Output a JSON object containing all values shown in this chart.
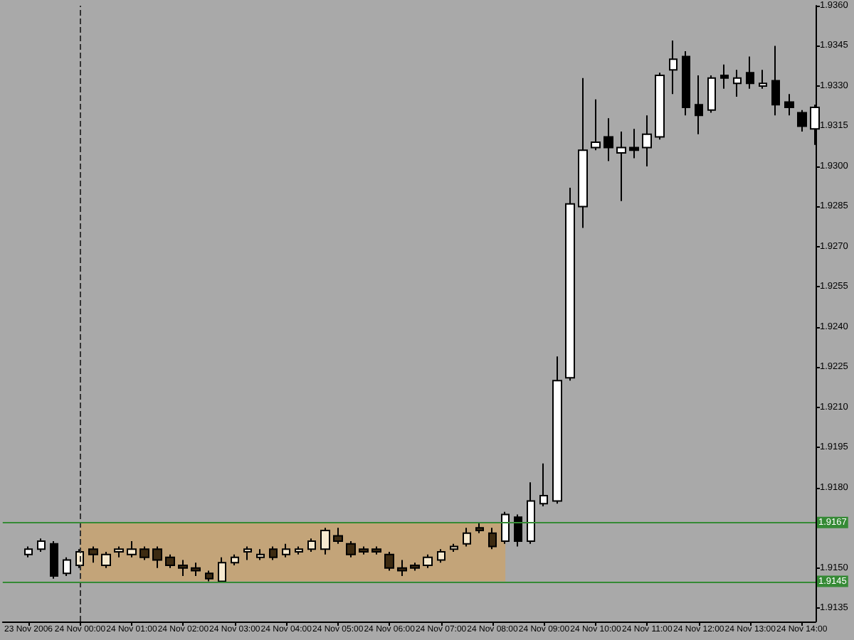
{
  "chart_data": {
    "type": "candlestick",
    "x": [
      "2006-11-23T23:00",
      "2006-11-23T23:15",
      "2006-11-23T23:30",
      "2006-11-23T23:45",
      "2006-11-24T00:00",
      "2006-11-24T00:15",
      "2006-11-24T00:30",
      "2006-11-24T00:45",
      "2006-11-24T01:00",
      "2006-11-24T01:15",
      "2006-11-24T01:30",
      "2006-11-24T01:45",
      "2006-11-24T02:00",
      "2006-11-24T02:15",
      "2006-11-24T02:30",
      "2006-11-24T02:45",
      "2006-11-24T03:00",
      "2006-11-24T03:15",
      "2006-11-24T03:30",
      "2006-11-24T03:45",
      "2006-11-24T04:00",
      "2006-11-24T04:15",
      "2006-11-24T04:30",
      "2006-11-24T04:45",
      "2006-11-24T05:00",
      "2006-11-24T05:15",
      "2006-11-24T05:30",
      "2006-11-24T05:45",
      "2006-11-24T06:00",
      "2006-11-24T06:15",
      "2006-11-24T06:30",
      "2006-11-24T06:45",
      "2006-11-24T07:00",
      "2006-11-24T07:15",
      "2006-11-24T07:30",
      "2006-11-24T07:45",
      "2006-11-24T08:00",
      "2006-11-24T08:15",
      "2006-11-24T08:30",
      "2006-11-24T08:45",
      "2006-11-24T09:00",
      "2006-11-24T09:15",
      "2006-11-24T09:30",
      "2006-11-24T09:45",
      "2006-11-24T10:00",
      "2006-11-24T10:15",
      "2006-11-24T10:30",
      "2006-11-24T10:45",
      "2006-11-24T11:00",
      "2006-11-24T11:15",
      "2006-11-24T11:30",
      "2006-11-24T11:45",
      "2006-11-24T12:00",
      "2006-11-24T12:15",
      "2006-11-24T12:30",
      "2006-11-24T12:45",
      "2006-11-24T13:00",
      "2006-11-24T13:15",
      "2006-11-24T13:30",
      "2006-11-24T13:45",
      "2006-11-24T14:00",
      "2006-11-24T14:15"
    ],
    "ohlc": [
      [
        1.9155,
        1.9158,
        1.9154,
        1.9157
      ],
      [
        1.9157,
        1.9161,
        1.9156,
        1.916
      ],
      [
        1.9159,
        1.916,
        1.9146,
        1.9147
      ],
      [
        1.9148,
        1.9154,
        1.9147,
        1.9153
      ],
      [
        1.9151,
        1.9157,
        1.915,
        1.9156
      ],
      [
        1.9157,
        1.9158,
        1.9152,
        1.9155
      ],
      [
        1.9151,
        1.9156,
        1.915,
        1.9155
      ],
      [
        1.9156,
        1.9158,
        1.9154,
        1.9157
      ],
      [
        1.9155,
        1.916,
        1.9154,
        1.9157
      ],
      [
        1.9157,
        1.9158,
        1.9153,
        1.9154
      ],
      [
        1.9157,
        1.9158,
        1.915,
        1.9153
      ],
      [
        1.9154,
        1.9155,
        1.915,
        1.9151
      ],
      [
        1.9151,
        1.9153,
        1.9147,
        1.915
      ],
      [
        1.915,
        1.9152,
        1.9147,
        1.9149
      ],
      [
        1.9148,
        1.9149,
        1.9145,
        1.9146
      ],
      [
        1.9145,
        1.9154,
        1.9145,
        1.9152
      ],
      [
        1.9152,
        1.9155,
        1.9151,
        1.9154
      ],
      [
        1.9156,
        1.9158,
        1.9153,
        1.9157
      ],
      [
        1.9154,
        1.9157,
        1.9153,
        1.9155
      ],
      [
        1.9157,
        1.9158,
        1.9153,
        1.9154
      ],
      [
        1.9155,
        1.9159,
        1.9154,
        1.9157
      ],
      [
        1.9156,
        1.9158,
        1.9155,
        1.9157
      ],
      [
        1.9157,
        1.9161,
        1.9156,
        1.916
      ],
      [
        1.9157,
        1.9165,
        1.9155,
        1.9164
      ],
      [
        1.9162,
        1.9165,
        1.9159,
        1.916
      ],
      [
        1.9159,
        1.916,
        1.9154,
        1.9155
      ],
      [
        1.9157,
        1.9158,
        1.9155,
        1.9156
      ],
      [
        1.9157,
        1.9158,
        1.9155,
        1.9156
      ],
      [
        1.9155,
        1.9156,
        1.9149,
        1.915
      ],
      [
        1.915,
        1.9153,
        1.9147,
        1.9149
      ],
      [
        1.9151,
        1.9152,
        1.9149,
        1.915
      ],
      [
        1.9151,
        1.9155,
        1.915,
        1.9154
      ],
      [
        1.9153,
        1.9157,
        1.9152,
        1.9156
      ],
      [
        1.9157,
        1.9159,
        1.9156,
        1.9158
      ],
      [
        1.9159,
        1.9165,
        1.9158,
        1.9163
      ],
      [
        1.9165,
        1.9167,
        1.9163,
        1.9164
      ],
      [
        1.9163,
        1.9165,
        1.9157,
        1.9158
      ],
      [
        1.916,
        1.9171,
        1.9159,
        1.917
      ],
      [
        1.9169,
        1.917,
        1.9158,
        1.916
      ],
      [
        1.916,
        1.9182,
        1.9159,
        1.9175
      ],
      [
        1.9174,
        1.9189,
        1.9173,
        1.9177
      ],
      [
        1.9175,
        1.9229,
        1.9174,
        1.922
      ],
      [
        1.9221,
        1.9292,
        1.922,
        1.9286
      ],
      [
        1.9285,
        1.9333,
        1.9277,
        1.9306
      ],
      [
        1.9307,
        1.9325,
        1.9306,
        1.9309
      ],
      [
        1.9311,
        1.9318,
        1.9302,
        1.9307
      ],
      [
        1.9305,
        1.9313,
        1.9287,
        1.9307
      ],
      [
        1.9307,
        1.9314,
        1.9303,
        1.9306
      ],
      [
        1.9307,
        1.9319,
        1.93,
        1.9312
      ],
      [
        1.9311,
        1.9335,
        1.931,
        1.9334
      ],
      [
        1.9336,
        1.9347,
        1.9327,
        1.934
      ],
      [
        1.9341,
        1.9343,
        1.9319,
        1.9322
      ],
      [
        1.9323,
        1.9334,
        1.9312,
        1.9319
      ],
      [
        1.9321,
        1.9334,
        1.932,
        1.9333
      ],
      [
        1.9334,
        1.9338,
        1.9329,
        1.9333
      ],
      [
        1.9331,
        1.9336,
        1.9326,
        1.9333
      ],
      [
        1.9335,
        1.9341,
        1.9329,
        1.9331
      ],
      [
        1.933,
        1.9336,
        1.9329,
        1.9331
      ],
      [
        1.9332,
        1.9345,
        1.9319,
        1.9323
      ],
      [
        1.9324,
        1.9327,
        1.9319,
        1.9322
      ],
      [
        1.932,
        1.9321,
        1.9313,
        1.9315
      ],
      [
        1.9314,
        1.9323,
        1.9308,
        1.9322
      ]
    ],
    "color": "#000000",
    "colors": [
      "#ffffff",
      "#ffffff",
      "#000000",
      "#ffffff",
      "#f7ead0",
      "#3d2b12",
      "#f7ead0",
      "#f7ead0",
      "#f7ead0",
      "#3d2b12",
      "#3d2b12",
      "#3d2b12",
      "#3d2b12",
      "#3d2b12",
      "#3d2b12",
      "#f7ead0",
      "#f7ead0",
      "#f7ead0",
      "#f7ead0",
      "#3d2b12",
      "#f7ead0",
      "#f7ead0",
      "#f7ead0",
      "#f7ead0",
      "#3d2b12",
      "#3d2b12",
      "#3d2b12",
      "#3d2b12",
      "#3d2b12",
      "#3d2b12",
      "#3d2b12",
      "#f7ead0",
      "#f7ead0",
      "#f7ead0",
      "#f7ead0",
      "#3d2b12",
      "#3d2b12",
      "#ffffff",
      "#000000",
      "#ffffff",
      "#ffffff",
      "#ffffff",
      "#ffffff",
      "#ffffff",
      "#ffffff",
      "#000000",
      "#ffffff",
      "#000000",
      "#ffffff",
      "#ffffff",
      "#ffffff",
      "#000000",
      "#000000",
      "#ffffff",
      "#000000",
      "#ffffff",
      "#000000",
      "#ffffff",
      "#000000",
      "#000000",
      "#000000",
      "#ffffff"
    ],
    "xlim": [
      "2006-11-23T22:30",
      "2006-11-24T14:16"
    ],
    "xticks": [
      {
        "value": "2006-11-23T23:00",
        "label": "23 Nov 2006"
      },
      {
        "value": "2006-11-24T00:00",
        "label": "24 Nov 00:00"
      },
      {
        "value": "2006-11-24T01:00",
        "label": "24 Nov 01:00"
      },
      {
        "value": "2006-11-24T02:00",
        "label": "24 Nov 02:00"
      },
      {
        "value": "2006-11-24T03:00",
        "label": "24 Nov 03:00"
      },
      {
        "value": "2006-11-24T04:00",
        "label": "24 Nov 04:00"
      },
      {
        "value": "2006-11-24T05:00",
        "label": "24 Nov 05:00"
      },
      {
        "value": "2006-11-24T06:00",
        "label": "24 Nov 06:00"
      },
      {
        "value": "2006-11-24T07:00",
        "label": "24 Nov 07:00"
      },
      {
        "value": "2006-11-24T08:00",
        "label": "24 Nov 08:00"
      },
      {
        "value": "2006-11-24T09:00",
        "label": "24 Nov 09:00"
      },
      {
        "value": "2006-11-24T10:00",
        "label": "24 Nov 10:00"
      },
      {
        "value": "2006-11-24T11:00",
        "label": "24 Nov 11:00"
      },
      {
        "value": "2006-11-24T12:00",
        "label": "24 Nov 12:00"
      },
      {
        "value": "2006-11-24T13:00",
        "label": "24 Nov 13:00"
      },
      {
        "value": "2006-11-24T14:00",
        "label": "24 Nov 14:00"
      }
    ],
    "ylim": [
      1.913,
      1.936
    ],
    "yticks": [
      {
        "value": 1.936,
        "label": "1.9360"
      },
      1.9345,
      {
        "value": 1.933,
        "label": "1.9330"
      },
      1.9315,
      {
        "value": 1.93,
        "label": "1.9300"
      },
      1.9285,
      {
        "value": 1.927,
        "label": "1.9270"
      },
      1.9255,
      {
        "value": 1.924,
        "label": "1.9240"
      },
      1.9225,
      {
        "value": 1.921,
        "label": "1.9210"
      },
      1.9195,
      {
        "value": 1.918,
        "label": "1.9180"
      },
      {
        "value": 1.915,
        "label": "1.9150"
      },
      1.9135
    ],
    "ref_lines": [
      {
        "axis": "x",
        "value": "2006-11-24T00:00",
        "color": "#333333",
        "line_style": "dashed"
      },
      {
        "axis": "y",
        "value": 1.9167,
        "label": "1.9167",
        "color": "#358a35"
      },
      {
        "axis": "y",
        "value": 1.9145,
        "label": "1.9145",
        "color": "#358a35"
      }
    ],
    "bands": [
      {
        "axis": "x",
        "from": "2006-11-24T00:00",
        "to": "2006-11-24T08:15",
        "color": "#c3a479"
      }
    ]
  }
}
